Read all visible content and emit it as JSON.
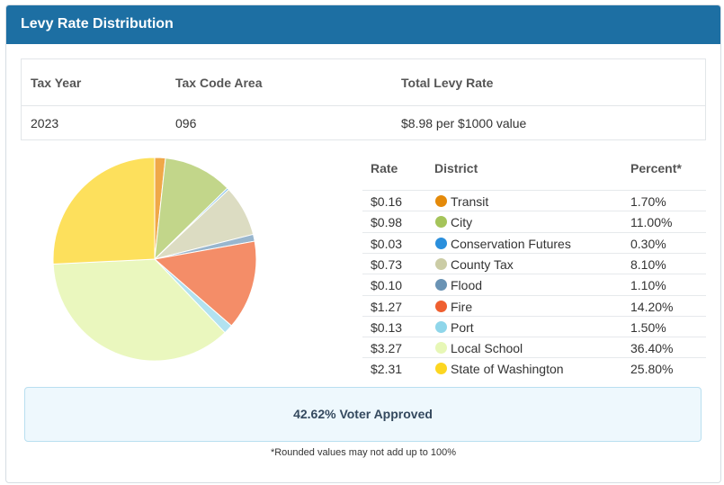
{
  "header": {
    "title": "Levy Rate Distribution"
  },
  "summary": {
    "columns": [
      "Tax Year",
      "Tax Code Area",
      "Total Levy Rate"
    ],
    "values": [
      "2023",
      "096",
      "$8.98 per $1000 value"
    ]
  },
  "distribution": {
    "headers": {
      "rate": "Rate",
      "district": "District",
      "percent": "Percent*"
    },
    "rows": [
      {
        "rate": "$0.16",
        "district": "Transit",
        "percent": "1.70%",
        "value": 1.7,
        "dot": "#e48a0a",
        "slice": "#f0a848"
      },
      {
        "rate": "$0.98",
        "district": "City",
        "percent": "11.00%",
        "value": 11.0,
        "dot": "#a5c45a",
        "slice": "#c2d68a"
      },
      {
        "rate": "$0.03",
        "district": "Conservation Futures",
        "percent": "0.30%",
        "value": 0.3,
        "dot": "#2a8fdc",
        "slice": "#7fbde8"
      },
      {
        "rate": "$0.73",
        "district": "County Tax",
        "percent": "8.10%",
        "value": 8.1,
        "dot": "#cbcca5",
        "slice": "#dcdcc2"
      },
      {
        "rate": "$0.10",
        "district": "Flood",
        "percent": "1.10%",
        "value": 1.1,
        "dot": "#6a93b4",
        "slice": "#98b6ce"
      },
      {
        "rate": "$1.27",
        "district": "Fire",
        "percent": "14.20%",
        "value": 14.2,
        "dot": "#ef5f30",
        "slice": "#f48d68"
      },
      {
        "rate": "$0.13",
        "district": "Port",
        "percent": "1.50%",
        "value": 1.5,
        "dot": "#8fd6ea",
        "slice": "#b2e2f0"
      },
      {
        "rate": "$3.27",
        "district": "Local School",
        "percent": "36.40%",
        "value": 36.4,
        "dot": "#e7f7b6",
        "slice": "#eaf7be"
      },
      {
        "rate": "$2.31",
        "district": "State of Washington",
        "percent": "25.80%",
        "value": 25.8,
        "dot": "#fcd621",
        "slice": "#fde05c"
      }
    ]
  },
  "chart_data": {
    "type": "pie",
    "categories": [
      "Transit",
      "City",
      "Conservation Futures",
      "County Tax",
      "Flood",
      "Fire",
      "Port",
      "Local School",
      "State of Washington"
    ],
    "values": [
      1.7,
      11.0,
      0.3,
      8.1,
      1.1,
      14.2,
      1.5,
      36.4,
      25.8
    ]
  },
  "voter": {
    "text": "42.62% Voter Approved"
  },
  "footnote": "*Rounded values may not add up to 100%"
}
